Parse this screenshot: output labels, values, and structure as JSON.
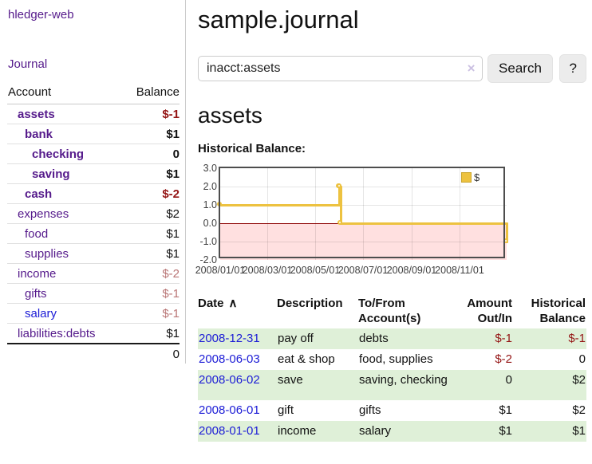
{
  "brand": "hledger-web",
  "nav": {
    "journal_label": "Journal"
  },
  "sidebar_table": {
    "headers": {
      "account": "Account",
      "balance": "Balance"
    },
    "accounts": [
      {
        "name": "assets",
        "level": 1,
        "bold": true,
        "link": "purple",
        "balance": "$-1",
        "balance_style": "neg-strong"
      },
      {
        "name": "bank",
        "level": 2,
        "bold": true,
        "link": "purple",
        "balance": "$1",
        "balance_style": "pos"
      },
      {
        "name": "checking",
        "level": 3,
        "bold": true,
        "link": "purple",
        "balance": "0",
        "balance_style": "pos"
      },
      {
        "name": "saving",
        "level": 3,
        "bold": true,
        "link": "purple",
        "balance": "$1",
        "balance_style": "pos"
      },
      {
        "name": "cash",
        "level": 2,
        "bold": true,
        "link": "purple",
        "balance": "$-2",
        "balance_style": "neg-strong"
      },
      {
        "name": "expenses",
        "level": 1,
        "bold": false,
        "link": "purple",
        "balance": "$2",
        "balance_style": "pos"
      },
      {
        "name": "food",
        "level": 2,
        "bold": false,
        "link": "purple",
        "balance": "$1",
        "balance_style": "pos"
      },
      {
        "name": "supplies",
        "level": 2,
        "bold": false,
        "link": "purple",
        "balance": "$1",
        "balance_style": "pos"
      },
      {
        "name": "income",
        "level": 1,
        "bold": false,
        "link": "purple",
        "balance": "$-2",
        "balance_style": "neg-soft"
      },
      {
        "name": "gifts",
        "level": 2,
        "bold": false,
        "link": "purple",
        "balance": "$-1",
        "balance_style": "neg-soft"
      },
      {
        "name": "salary",
        "level": 2,
        "bold": false,
        "link": "blue",
        "balance": "$-1",
        "balance_style": "neg-soft"
      },
      {
        "name": "liabilities:debts",
        "level": 1,
        "bold": false,
        "link": "purple",
        "balance": "$1",
        "balance_style": "pos"
      }
    ],
    "total": "0"
  },
  "header": {
    "title": "sample.journal"
  },
  "search": {
    "value": "inacct:assets",
    "clear_icon": "×",
    "button_label": "Search",
    "help_label": "?"
  },
  "account_page": {
    "title": "assets",
    "chart_heading": "Historical Balance:"
  },
  "chart_data": {
    "type": "line",
    "title": "Historical Balance",
    "style": "step",
    "series": [
      {
        "name": "$",
        "color": "#edc240",
        "points": [
          [
            "2008/01/01",
            1
          ],
          [
            "2008/06/01",
            2
          ],
          [
            "2008/06/02",
            2
          ],
          [
            "2008/06/03",
            0
          ],
          [
            "2008/12/31",
            -1
          ]
        ]
      }
    ],
    "x_domain": [
      "2008/01/01",
      "2008/12/31"
    ],
    "ylim": [
      -2,
      3
    ],
    "yticks": [
      "3.0",
      "2.0",
      "1.0",
      "0.0",
      "-1.0",
      "-2.0"
    ],
    "ytick_values": [
      3,
      2,
      1,
      0,
      -1,
      -2
    ],
    "xticks": [
      "2008/01/01",
      "2008/03/01",
      "2008/05/01",
      "2008/07/01",
      "2008/09/01",
      "2008/11/01"
    ],
    "grid": true,
    "legend": {
      "label": "$",
      "position": "top-right"
    },
    "negative_region": {
      "from": 0,
      "to": -2
    }
  },
  "transactions": {
    "headers": {
      "date": "Date",
      "sort_icon": "∧",
      "description": "Description",
      "accounts": "To/From Account(s)",
      "amount": "Amount Out/In",
      "balance": "Historical Balance"
    },
    "rows": [
      {
        "date": "2008-12-31",
        "description": "pay off",
        "accounts": "debts",
        "amount": "$-1",
        "amount_neg": true,
        "balance": "$-1",
        "balance_neg": true,
        "shaded": true,
        "tall": false
      },
      {
        "date": "2008-06-03",
        "description": "eat & shop",
        "accounts": "food, supplies",
        "amount": "$-2",
        "amount_neg": true,
        "balance": "0",
        "balance_neg": false,
        "shaded": false,
        "tall": false
      },
      {
        "date": "2008-06-02",
        "description": "save",
        "accounts": "saving, checking",
        "amount": "0",
        "amount_neg": false,
        "balance": "$2",
        "balance_neg": false,
        "shaded": true,
        "tall": true
      },
      {
        "date": "2008-06-01",
        "description": "gift",
        "accounts": "gifts",
        "amount": "$1",
        "amount_neg": false,
        "balance": "$2",
        "balance_neg": false,
        "shaded": false,
        "tall": false
      },
      {
        "date": "2008-01-01",
        "description": "income",
        "accounts": "salary",
        "amount": "$1",
        "amount_neg": false,
        "balance": "$1",
        "balance_neg": false,
        "shaded": true,
        "tall": false
      }
    ]
  },
  "colors": {
    "link_purple": "#551a8b",
    "link_blue": "#1c1cd6",
    "red_strong": "#941414",
    "red_soft": "#b97575",
    "row_green": "#dff0d8",
    "chart_line": "#edc240",
    "negative_region_fill": "rgba(255,0,0,0.12)",
    "zero_line": "#8b0000",
    "plot_border": "#4d4d4d",
    "button_bg": "#ececec",
    "input_border": "#cccccc",
    "clear_icon": "#cbc0e2",
    "divider": "#cccccc"
  }
}
